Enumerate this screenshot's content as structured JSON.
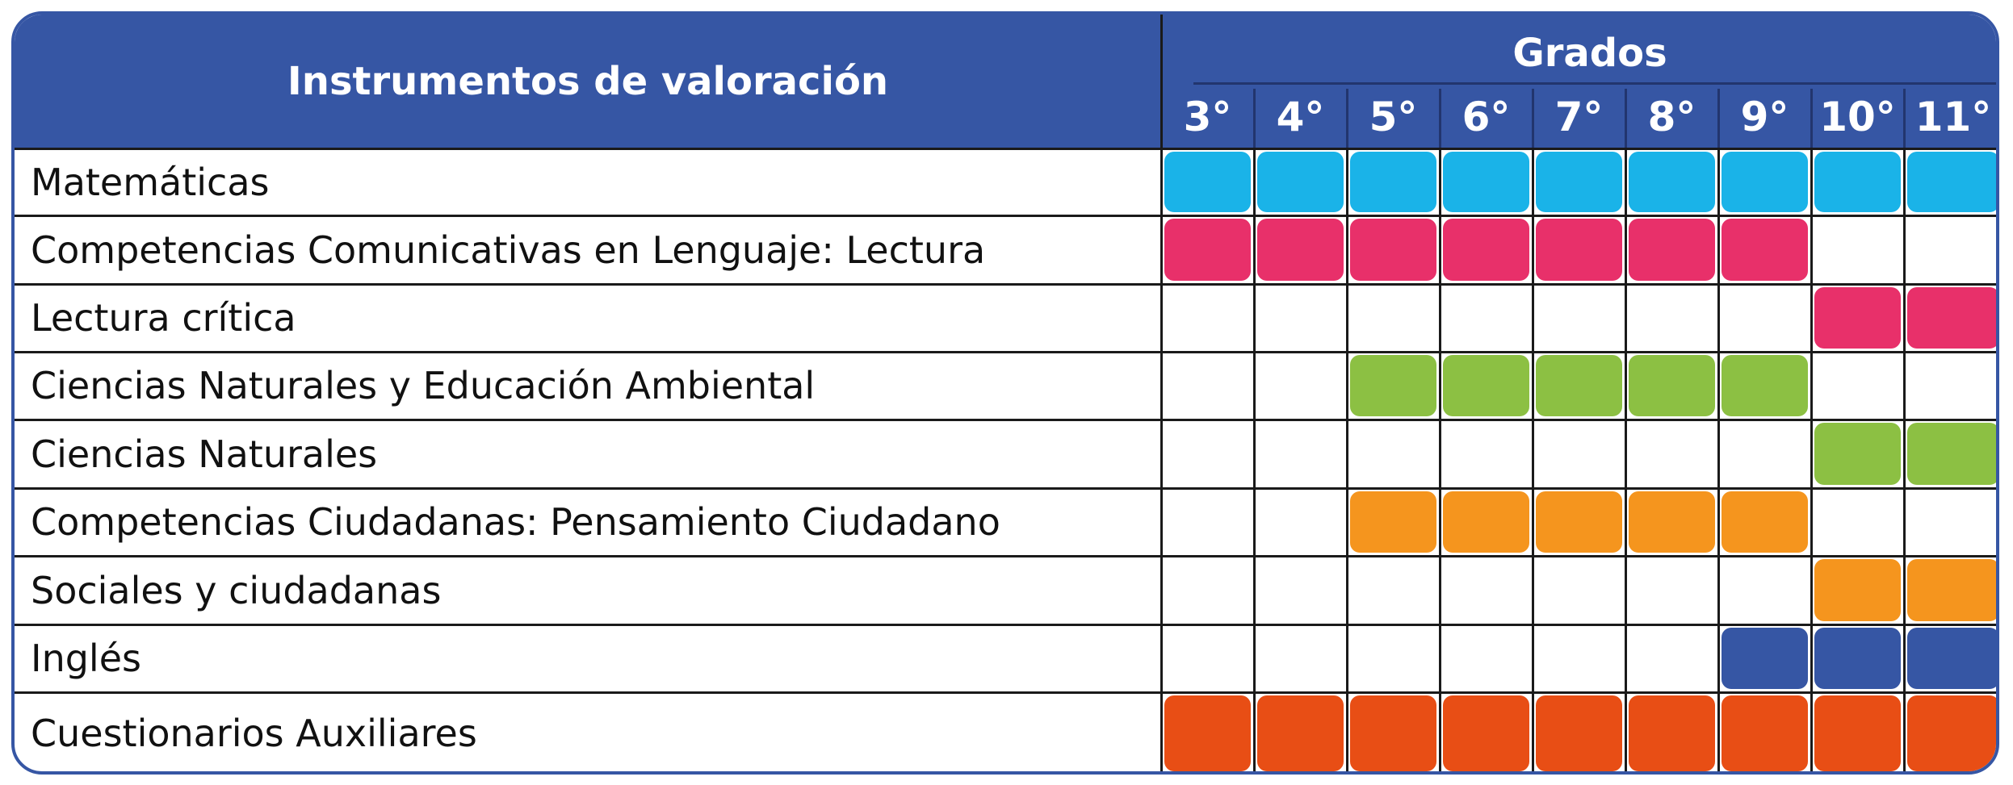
{
  "header": {
    "instruments_title": "Instrumentos de valoración",
    "grades_title": "Grados"
  },
  "grades": [
    "3°",
    "4°",
    "5°",
    "6°",
    "7°",
    "8°",
    "9°",
    "10°",
    "11°"
  ],
  "colors": {
    "header_blue": "#3656a4",
    "cyan": "#1ab3e8",
    "magenta": "#e8306a",
    "green": "#8cc043",
    "orange": "#f5951e",
    "blue": "#3656a4",
    "red_orange": "#e84e15"
  },
  "rows": [
    {
      "label": "Matemáticas",
      "color": "#1ab3e8",
      "grades_active": [
        0,
        1,
        2,
        3,
        4,
        5,
        6,
        7,
        8
      ]
    },
    {
      "label": "Competencias Comunicativas en Lenguaje: Lectura",
      "color": "#e8306a",
      "grades_active": [
        0,
        1,
        2,
        3,
        4,
        5,
        6
      ]
    },
    {
      "label": "Lectura crítica",
      "color": "#e8306a",
      "grades_active": [
        7,
        8
      ]
    },
    {
      "label": "Ciencias Naturales y Educación Ambiental",
      "color": "#8cc043",
      "grades_active": [
        2,
        3,
        4,
        5,
        6
      ]
    },
    {
      "label": "Ciencias Naturales",
      "color": "#8cc043",
      "grades_active": [
        7,
        8
      ]
    },
    {
      "label": "Competencias Ciudadanas: Pensamiento Ciudadano",
      "color": "#f5951e",
      "grades_active": [
        2,
        3,
        4,
        5,
        6
      ]
    },
    {
      "label": "Sociales y ciudadanas",
      "color": "#f5951e",
      "grades_active": [
        7,
        8
      ]
    },
    {
      "label": "Inglés",
      "color": "#3656a4",
      "grades_active": [
        6,
        7,
        8
      ]
    },
    {
      "label": "Cuestionarios Auxiliares",
      "color": "#e84e15",
      "grades_active": [
        0,
        1,
        2,
        3,
        4,
        5,
        6,
        7,
        8
      ]
    }
  ]
}
